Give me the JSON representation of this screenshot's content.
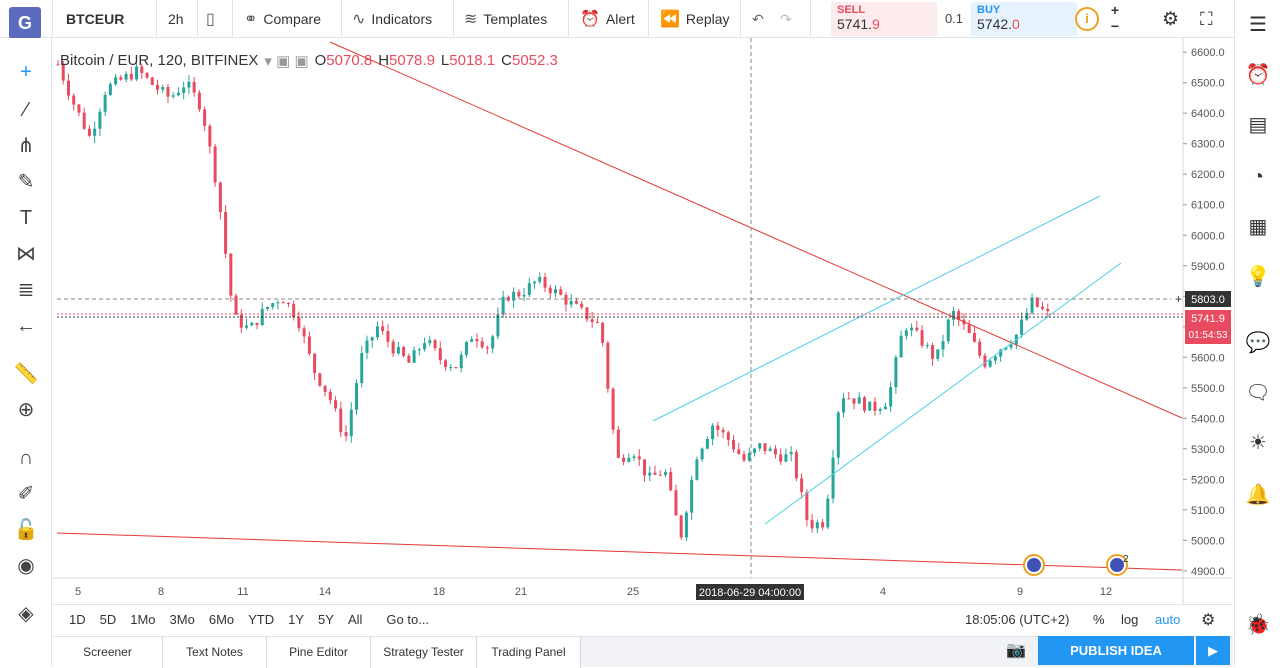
{
  "topbar": {
    "logo": "G",
    "symbol": "BTCEUR",
    "interval": "2h",
    "compare": "Compare",
    "indicators": "Indicators",
    "templates": "Templates",
    "alert": "Alert",
    "replay": "Replay"
  },
  "trade": {
    "sell_label": "SELL",
    "sell_main": "5741.",
    "sell_tail": "9",
    "spread": "0.1",
    "buy_label": "BUY",
    "buy_main": "5742.",
    "buy_tail": "0",
    "info": "i"
  },
  "legend": {
    "title": "Bitcoin / EUR, 120, BITFINEX",
    "o_label": "O",
    "o_value": "5070.8",
    "h_label": "H",
    "h_value": "5078.9",
    "l_label": "L",
    "l_value": "5018.1",
    "c_label": "C",
    "c_value": "5052.3"
  },
  "chart_data": {
    "type": "candlestick",
    "y_ticks": [
      "6600.0",
      "6500.0",
      "6400.0",
      "6300.0",
      "6200.0",
      "6100.0",
      "6000.0",
      "5900.0",
      "5800.0",
      "5700.0",
      "5600.0",
      "5500.0",
      "5400.0",
      "5300.0",
      "5200.0",
      "5100.0",
      "5000.0",
      "4900.0"
    ],
    "y_range": [
      4870,
      6640
    ],
    "x_ticks": [
      "5",
      "8",
      "11",
      "14",
      "18",
      "21",
      "25",
      "4",
      "9",
      "12"
    ],
    "crosshair_price": "5803.0",
    "last_price": "5741.9",
    "countdown": "01:54:53",
    "crosshair_time": "2018-06-29 04:00:00",
    "event_badge_count": "2",
    "close_path": [
      6560,
      6430,
      6320,
      6480,
      6510,
      6540,
      6490,
      6450,
      6500,
      6420,
      6150,
      5730,
      5690,
      5760,
      5800,
      5730,
      5560,
      5470,
      5330,
      5600,
      5700,
      5630,
      5580,
      5660,
      5590,
      5570,
      5680,
      5630,
      5800,
      5810,
      5850,
      5820,
      5780,
      5740,
      5700,
      5260,
      5300,
      5200,
      5230,
      5010,
      5280,
      5380,
      5330,
      5260,
      5310,
      5280,
      5270,
      5050,
      5060,
      5480,
      5460,
      5430,
      5460,
      5710,
      5660,
      5590,
      5750,
      5680,
      5580,
      5630,
      5670,
      5780,
      5740
    ]
  },
  "bottom": {
    "ranges": [
      "1D",
      "5D",
      "1Mo",
      "3Mo",
      "6Mo",
      "YTD",
      "1Y",
      "5Y",
      "All"
    ],
    "goto": "Go to...",
    "clock": "18:05:06 (UTC+2)",
    "percent": "%",
    "log": "log",
    "auto": "auto"
  },
  "tabs": [
    "Screener",
    "Text Notes",
    "Pine Editor",
    "Strategy Tester",
    "Trading Panel"
  ],
  "publish": "PUBLISH IDEA",
  "colors": {
    "up": "#26a69a",
    "down": "#e84a5f",
    "trend": "#e53935",
    "channel": "#4dd0e1",
    "accent": "#2196f3"
  }
}
